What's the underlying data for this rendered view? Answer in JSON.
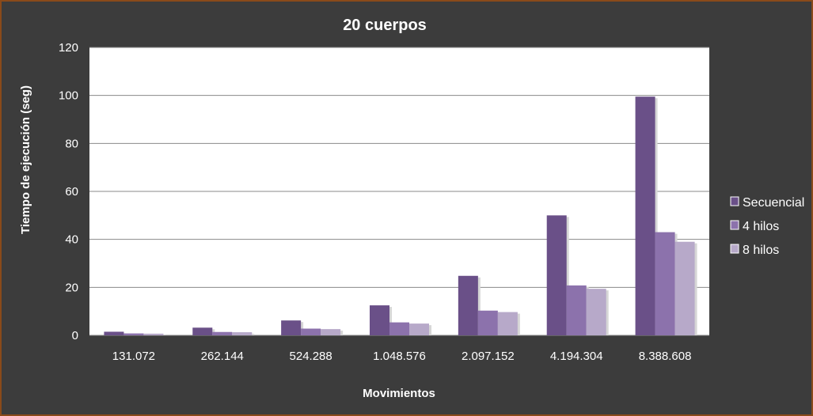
{
  "chart_data": {
    "type": "bar",
    "title": "20 cuerpos",
    "xlabel": "Movimientos",
    "ylabel": "Tiempo de ejecución (seg)",
    "ylim": [
      0,
      120
    ],
    "yticks": [
      "0",
      "20",
      "40",
      "60",
      "80",
      "100",
      "120"
    ],
    "grid": true,
    "legend_position": "right",
    "categories": [
      "131.072",
      "262.144",
      "524.288",
      "1.048.576",
      "2.097.152",
      "4.194.304",
      "8.388.608"
    ],
    "series": [
      {
        "name": "Secuencial",
        "color": "#6a5088",
        "values": [
          1.5,
          3.2,
          6.2,
          12.5,
          24.8,
          50.0,
          99.5
        ]
      },
      {
        "name": "4 hilos",
        "color": "#8c72ac",
        "values": [
          0.8,
          1.4,
          2.8,
          5.4,
          10.3,
          20.8,
          43.0
        ]
      },
      {
        "name": "8 hilos",
        "color": "#b7a9c9",
        "values": [
          0.7,
          1.3,
          2.6,
          4.9,
          9.7,
          19.4,
          39.0
        ]
      }
    ]
  }
}
